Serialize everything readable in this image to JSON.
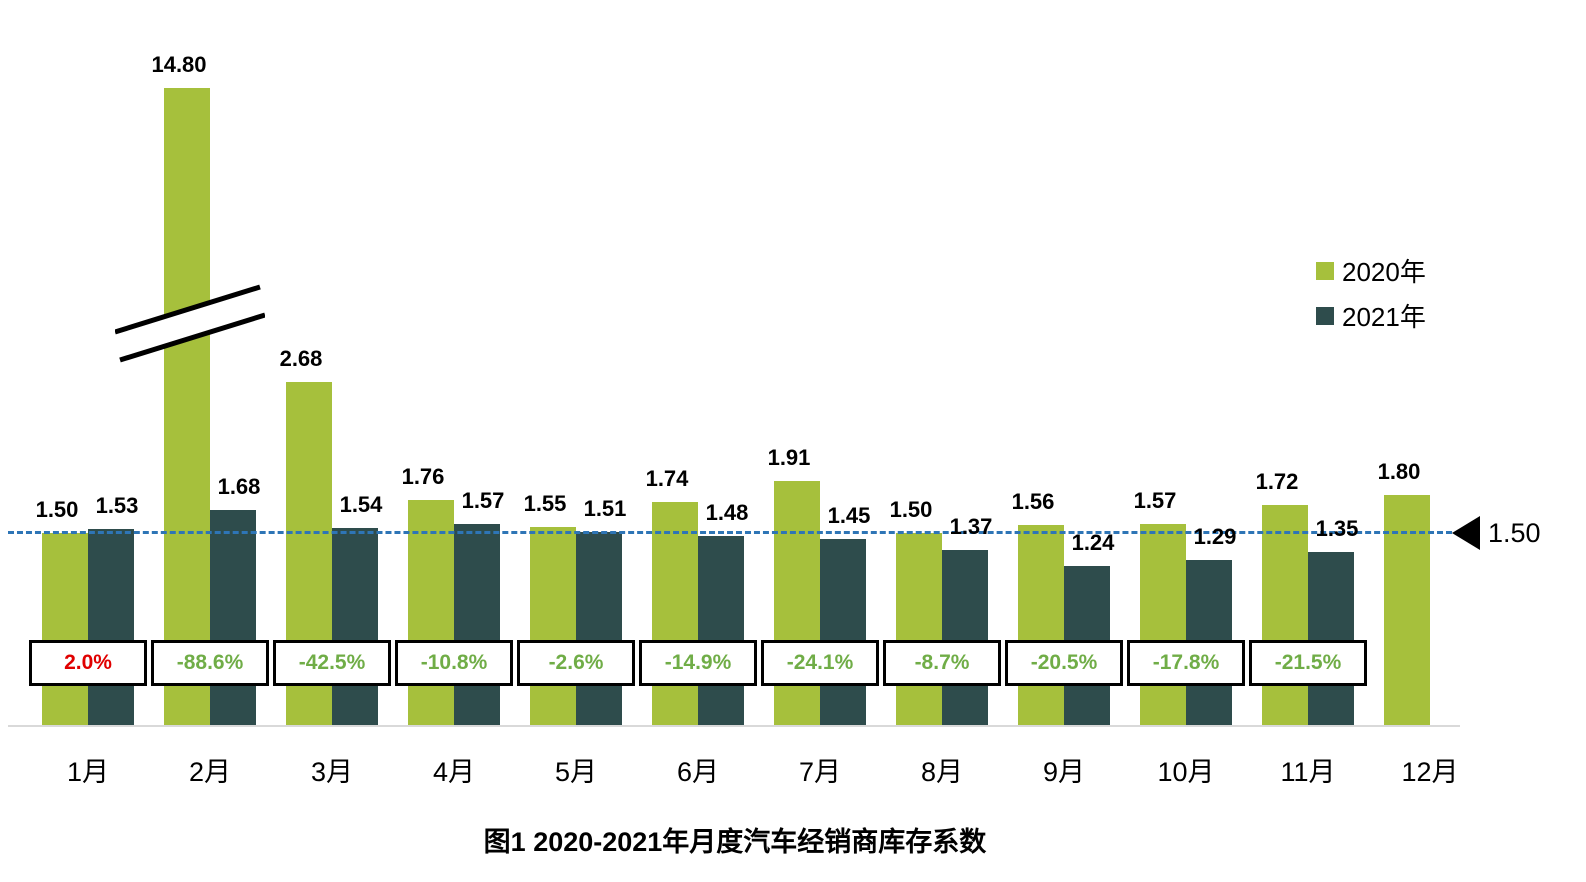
{
  "chart_data": {
    "type": "bar",
    "title": "图1  2020-2021年月度汽车经销商库存系数",
    "categories": [
      "1月",
      "2月",
      "3月",
      "4月",
      "5月",
      "6月",
      "7月",
      "8月",
      "9月",
      "10月",
      "11月",
      "12月"
    ],
    "series": [
      {
        "name": "2020年",
        "color": "#a6c03c",
        "values": [
          1.5,
          14.8,
          2.68,
          1.76,
          1.55,
          1.74,
          1.91,
          1.5,
          1.56,
          1.57,
          1.72,
          1.8
        ]
      },
      {
        "name": "2021年",
        "color": "#2e4c4c",
        "values": [
          1.53,
          1.68,
          1.54,
          1.57,
          1.51,
          1.48,
          1.45,
          1.37,
          1.24,
          1.29,
          1.35,
          null
        ]
      }
    ],
    "pct_changes": [
      "2.0%",
      "-88.6%",
      "-42.5%",
      "-10.8%",
      "-2.6%",
      "-14.9%",
      "-24.1%",
      "-8.7%",
      "-20.5%",
      "-17.8%",
      "-21.5%"
    ],
    "pct_colors": {
      "increase": "#e00000",
      "decrease": "#70ad47"
    },
    "reference_line": {
      "value": 1.5,
      "label": "1.50",
      "color": "#2e75b6"
    },
    "axis_break_month": "2月",
    "legend_position": "top-right",
    "grid": false
  }
}
